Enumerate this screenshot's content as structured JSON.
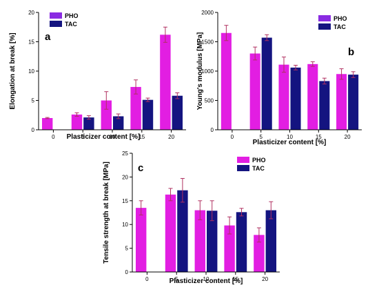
{
  "colors": {
    "PHO": "#e21ee2",
    "TAC": "#141480",
    "error_bar": "#b03060",
    "PHO_legend": "#8a2be2"
  },
  "chart_data": [
    {
      "type": "bar",
      "panel_letter": "a",
      "title": "",
      "xlabel": "Plasticizer content [%]",
      "ylabel": "Elongation at break [%]",
      "categories": [
        "0",
        "5",
        "10",
        "15",
        "20"
      ],
      "ylim": [
        0,
        20
      ],
      "yticks": [
        "0",
        "5",
        "10",
        "15",
        "20"
      ],
      "legend_position": "top-left",
      "grid": false,
      "series": [
        {
          "name": "PHO",
          "values": [
            2.0,
            2.6,
            5.0,
            7.3,
            16.2
          ],
          "errors": [
            0.1,
            0.3,
            1.5,
            1.2,
            1.3
          ]
        },
        {
          "name": "TAC",
          "values": [
            0,
            2.1,
            2.3,
            5.1,
            5.8
          ],
          "errors": [
            0,
            0.3,
            0.4,
            0.3,
            0.5
          ]
        }
      ]
    },
    {
      "type": "bar",
      "panel_letter": "b",
      "title": "",
      "xlabel": "Plasticizer content [%]",
      "ylabel": "Young's modulus [MPa]",
      "categories": [
        "0",
        "5",
        "10",
        "15",
        "20"
      ],
      "ylim": [
        0,
        2000
      ],
      "yticks": [
        "0",
        "500",
        "1000",
        "1500",
        "2000"
      ],
      "legend_position": "top-right",
      "grid": false,
      "series": [
        {
          "name": "PHO",
          "values": [
            1650,
            1300,
            1110,
            1120,
            950
          ],
          "errors": [
            130,
            110,
            130,
            40,
            90
          ]
        },
        {
          "name": "TAC",
          "values": [
            0,
            1570,
            1060,
            830,
            940
          ],
          "errors": [
            0,
            50,
            40,
            50,
            50
          ]
        }
      ]
    },
    {
      "type": "bar",
      "panel_letter": "c",
      "title": "",
      "xlabel": "Plasticizer content [%]",
      "ylabel": "Tensile strength at break [MPa]",
      "categories": [
        "0",
        "5",
        "10",
        "15",
        "20"
      ],
      "ylim": [
        0,
        25
      ],
      "yticks": [
        "0",
        "5",
        "10",
        "15",
        "20",
        "25"
      ],
      "legend_position": "top-right",
      "grid": false,
      "series": [
        {
          "name": "PHO",
          "values": [
            13.5,
            16.3,
            13.0,
            9.8,
            7.8
          ],
          "errors": [
            1.5,
            1.3,
            2.0,
            1.8,
            1.5
          ]
        },
        {
          "name": "TAC",
          "values": [
            0,
            17.2,
            12.9,
            12.6,
            13.0
          ],
          "errors": [
            0,
            2.5,
            2.1,
            0.8,
            1.8
          ]
        }
      ]
    }
  ]
}
